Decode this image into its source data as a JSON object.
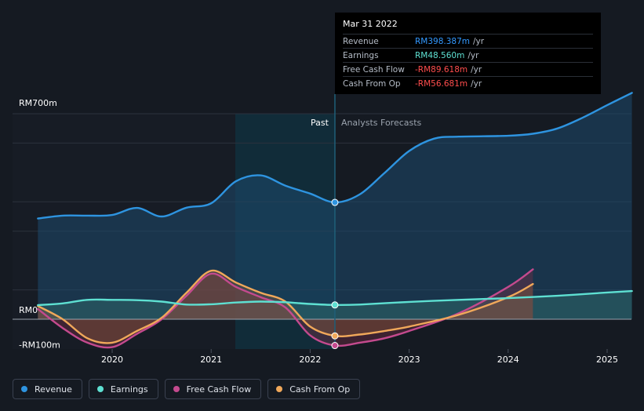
{
  "chart_data": {
    "type": "line",
    "title": "",
    "xlabel": "",
    "ylabel": "",
    "ylim": [
      -100,
      700
    ],
    "y_tick_labels": [
      "RM700m",
      "RM0",
      "-RM100m"
    ],
    "x_ticks": [
      2020,
      2021,
      2022,
      2023,
      2024,
      2025
    ],
    "x_tick_labels": [
      "2020",
      "2021",
      "2022",
      "2023",
      "2024",
      "2025"
    ],
    "past_label": "Past",
    "forecast_label": "Analysts Forecasts",
    "divider_x": 2022.25,
    "series": [
      {
        "name": "Revenue",
        "color": "#2e94e0",
        "points": [
          [
            2019.25,
            343
          ],
          [
            2019.5,
            353
          ],
          [
            2019.75,
            353
          ],
          [
            2020.0,
            355
          ],
          [
            2020.25,
            379
          ],
          [
            2020.5,
            350
          ],
          [
            2020.75,
            380
          ],
          [
            2021.0,
            395
          ],
          [
            2021.25,
            470
          ],
          [
            2021.5,
            490
          ],
          [
            2021.75,
            455
          ],
          [
            2022.0,
            428
          ],
          [
            2022.25,
            398
          ]
        ],
        "forecast": [
          [
            2022.25,
            398
          ],
          [
            2022.5,
            425
          ],
          [
            2022.75,
            498
          ],
          [
            2023.0,
            573
          ],
          [
            2023.25,
            615
          ],
          [
            2023.5,
            622
          ],
          [
            2024.0,
            625
          ],
          [
            2024.25,
            632
          ],
          [
            2024.5,
            650
          ],
          [
            2024.75,
            686
          ],
          [
            2025.0,
            729
          ],
          [
            2025.25,
            771
          ]
        ]
      },
      {
        "name": "Earnings",
        "color": "#5ee0d2",
        "points": [
          [
            2019.25,
            48
          ],
          [
            2019.5,
            54
          ],
          [
            2019.75,
            66
          ],
          [
            2020.0,
            66
          ],
          [
            2020.25,
            65
          ],
          [
            2020.5,
            60
          ],
          [
            2020.75,
            50
          ],
          [
            2021.0,
            51
          ],
          [
            2021.25,
            57
          ],
          [
            2021.5,
            60
          ],
          [
            2021.75,
            58
          ],
          [
            2022.0,
            52
          ],
          [
            2022.25,
            48.6
          ]
        ],
        "forecast": [
          [
            2022.25,
            48.6
          ],
          [
            2022.5,
            50
          ],
          [
            2023.0,
            59
          ],
          [
            2023.5,
            66
          ],
          [
            2024.0,
            72
          ],
          [
            2024.5,
            80
          ],
          [
            2025.0,
            91
          ],
          [
            2025.25,
            96
          ]
        ]
      },
      {
        "name": "Free Cash Flow",
        "color": "#c44a8e",
        "points": [
          [
            2019.25,
            35
          ],
          [
            2019.5,
            -30
          ],
          [
            2019.75,
            -80
          ],
          [
            2020.0,
            -95
          ],
          [
            2020.25,
            -50
          ],
          [
            2020.5,
            0
          ],
          [
            2020.75,
            80
          ],
          [
            2021.0,
            155
          ],
          [
            2021.25,
            110
          ],
          [
            2021.5,
            75
          ],
          [
            2021.75,
            40
          ],
          [
            2022.0,
            -55
          ],
          [
            2022.25,
            -89.6
          ]
        ],
        "forecast": [
          [
            2022.25,
            -89.6
          ],
          [
            2022.5,
            -80
          ],
          [
            2022.75,
            -65
          ],
          [
            2023.0,
            -40
          ],
          [
            2023.5,
            20
          ],
          [
            2024.0,
            110
          ],
          [
            2024.25,
            170
          ]
        ]
      },
      {
        "name": "Cash From Op",
        "color": "#f0a85a",
        "points": [
          [
            2019.25,
            45
          ],
          [
            2019.5,
            0
          ],
          [
            2019.75,
            -65
          ],
          [
            2020.0,
            -80
          ],
          [
            2020.25,
            -40
          ],
          [
            2020.5,
            5
          ],
          [
            2020.75,
            90
          ],
          [
            2021.0,
            165
          ],
          [
            2021.25,
            125
          ],
          [
            2021.5,
            90
          ],
          [
            2021.75,
            60
          ],
          [
            2022.0,
            -25
          ],
          [
            2022.25,
            -56.7
          ]
        ],
        "forecast": [
          [
            2022.25,
            -56.7
          ],
          [
            2022.5,
            -52
          ],
          [
            2022.75,
            -40
          ],
          [
            2023.0,
            -25
          ],
          [
            2023.5,
            15
          ],
          [
            2024.0,
            75
          ],
          [
            2024.25,
            120
          ]
        ]
      }
    ]
  },
  "tooltip": {
    "date": "Mar 31 2022",
    "rows": [
      {
        "label": "Revenue",
        "value": "RM398.387m",
        "unit": "/yr",
        "color": "#3399ff"
      },
      {
        "label": "Earnings",
        "value": "RM48.560m",
        "unit": "/yr",
        "color": "#5ee0d2"
      },
      {
        "label": "Free Cash Flow",
        "value": "-RM89.618m",
        "unit": "/yr",
        "color": "#ff4d4d"
      },
      {
        "label": "Cash From Op",
        "value": "-RM56.681m",
        "unit": "/yr",
        "color": "#ff4d4d"
      }
    ]
  },
  "legend": [
    {
      "label": "Revenue",
      "color": "#2e94e0"
    },
    {
      "label": "Earnings",
      "color": "#5ee0d2"
    },
    {
      "label": "Free Cash Flow",
      "color": "#c44a8e"
    },
    {
      "label": "Cash From Op",
      "color": "#f0a85a"
    }
  ]
}
